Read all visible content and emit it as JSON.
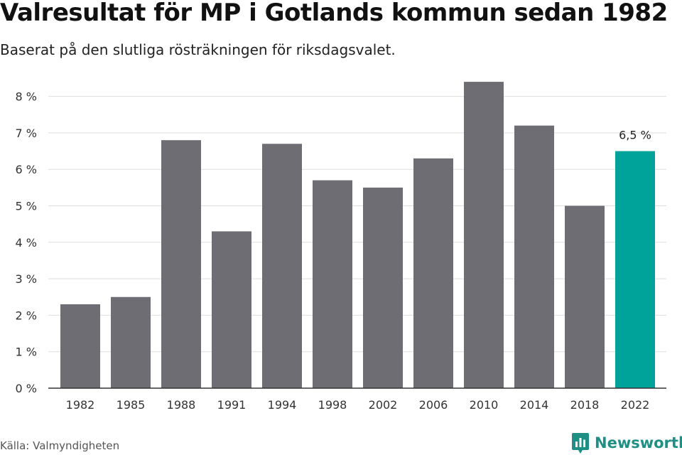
{
  "header": {
    "title": "Valresultat för MP i Gotlands kommun sedan 1982",
    "subtitle": "Baserat på den slutliga rösträkningen för riksdagsvalet."
  },
  "footer": {
    "source": "Källa: Valmyndigheten",
    "brand": "Newsworthy"
  },
  "chart_data": {
    "type": "bar",
    "categories": [
      "1982",
      "1985",
      "1988",
      "1991",
      "1994",
      "1998",
      "2002",
      "2006",
      "2010",
      "2014",
      "2018",
      "2022"
    ],
    "values": [
      2.3,
      2.5,
      6.8,
      4.3,
      6.7,
      5.7,
      5.5,
      6.3,
      8.4,
      7.2,
      5.0,
      6.5
    ],
    "y_ticks": [
      "0 %",
      "1 %",
      "2 %",
      "3 %",
      "4 %",
      "5 %",
      "6 %",
      "7 %",
      "8 %"
    ],
    "ylim": [
      0,
      8.6
    ],
    "grid": true,
    "highlight_index": 11,
    "data_labels": [
      {
        "index": 11,
        "text": "6,5 %"
      }
    ],
    "colors": {
      "bar": "#6e6d73",
      "highlight": "#00a399",
      "grid": "#dddddd",
      "axis": "#333333"
    }
  }
}
